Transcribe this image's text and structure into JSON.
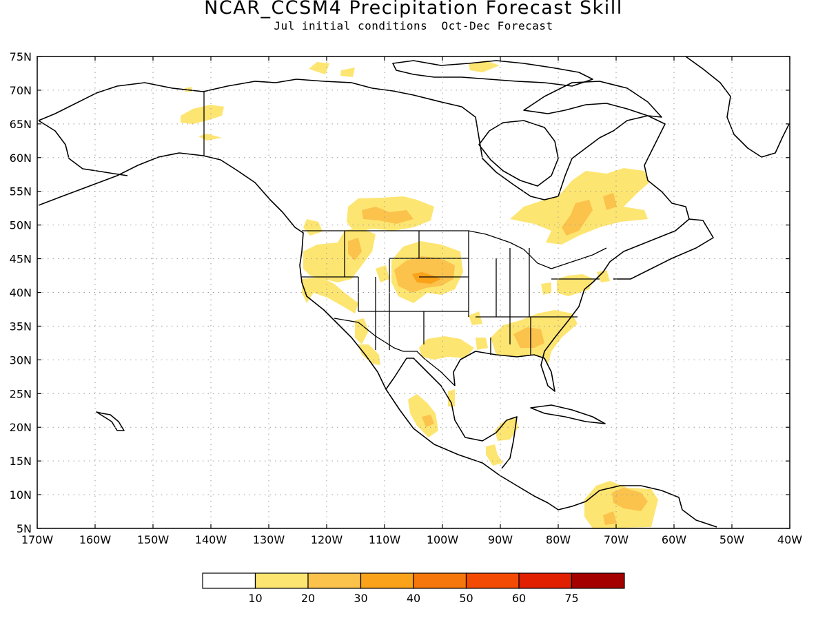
{
  "title": "NCAR_CCSM4 Precipitation Forecast Skill",
  "subtitle": "Jul initial conditions  Oct-Dec Forecast",
  "axes": {
    "lon_labels": [
      "170W",
      "160W",
      "150W",
      "140W",
      "130W",
      "120W",
      "110W",
      "100W",
      "90W",
      "80W",
      "70W",
      "60W",
      "50W",
      "40W"
    ],
    "lat_labels": [
      "5N",
      "10N",
      "15N",
      "20N",
      "25N",
      "30N",
      "35N",
      "40N",
      "45N",
      "50N",
      "55N",
      "60N",
      "65N",
      "70N",
      "75N"
    ],
    "lon_range": [
      -170,
      -40
    ],
    "lat_range": [
      5,
      75
    ],
    "gridlines": "dotted"
  },
  "colorbar": {
    "labels": [
      "10",
      "20",
      "30",
      "40",
      "50",
      "60",
      "75"
    ],
    "colors": [
      "#ffffff",
      "#fde571",
      "#fbc24c",
      "#f9a21a",
      "#f6770c",
      "#f44b04",
      "#e11f01",
      "#a40000"
    ]
  }
}
